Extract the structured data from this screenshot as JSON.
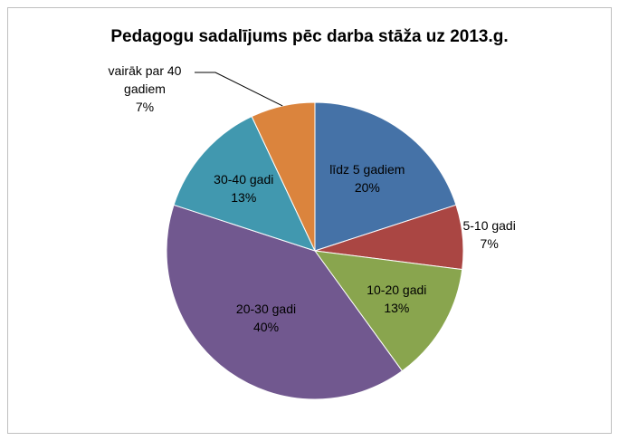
{
  "chart_data": {
    "type": "pie",
    "title": "Pedagogu sadalījums pēc darba stāža uz 2013.g.",
    "categories": [
      "līdz 5 gadiem",
      "5-10 gadi",
      "10-20 gadi",
      "20-30 gadi",
      "30-40 gadi",
      "vairāk par 40 gadiem"
    ],
    "values": [
      20,
      7,
      13,
      40,
      13,
      7
    ],
    "value_labels": [
      "20%",
      "7%",
      "13%",
      "40%",
      "13%",
      "7%"
    ],
    "colors": [
      "#4572A7",
      "#AA4643",
      "#89A54E",
      "#71588F",
      "#4198AF",
      "#DB843D"
    ]
  }
}
